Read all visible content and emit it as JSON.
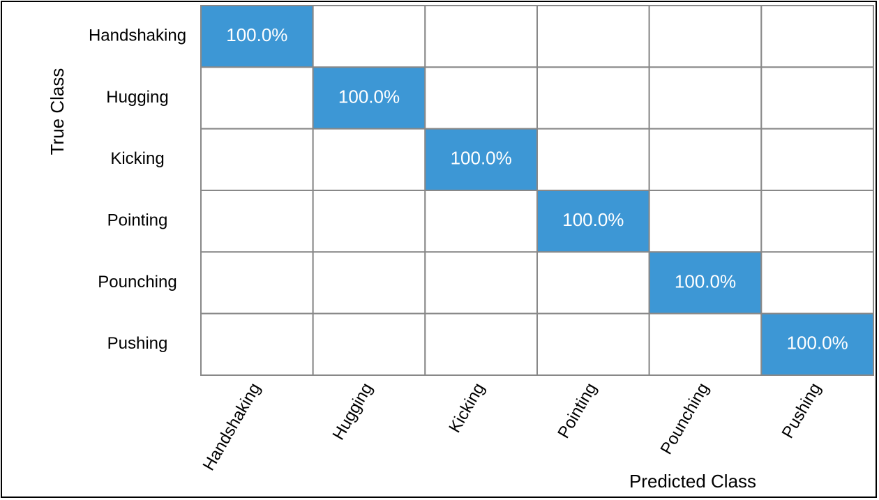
{
  "chart_data": {
    "type": "confusion_matrix",
    "ylabel": "True Class",
    "xlabel": "Predicted Class",
    "rows": [
      "Handshaking",
      "Hugging",
      "Kicking",
      "Pointing",
      "Pounching",
      "Pushing"
    ],
    "columns": [
      "Handshaking",
      "Hugging",
      "Kicking",
      "Pointing",
      "Pounching",
      "Pushing"
    ],
    "values": [
      [
        100.0,
        0,
        0,
        0,
        0,
        0
      ],
      [
        0,
        100.0,
        0,
        0,
        0,
        0
      ],
      [
        0,
        0,
        100.0,
        0,
        0,
        0
      ],
      [
        0,
        0,
        0,
        100.0,
        0,
        0
      ],
      [
        0,
        0,
        0,
        0,
        100.0,
        0
      ],
      [
        0,
        0,
        0,
        0,
        0,
        100.0
      ]
    ],
    "value_labels": [
      [
        "100.0%",
        null,
        null,
        null,
        null,
        null
      ],
      [
        null,
        "100.0%",
        null,
        null,
        null,
        null
      ],
      [
        null,
        null,
        "100.0%",
        null,
        null,
        null
      ],
      [
        null,
        null,
        null,
        "100.0%",
        null,
        null
      ],
      [
        null,
        null,
        null,
        null,
        "100.0%",
        null
      ],
      [
        null,
        null,
        null,
        null,
        null,
        "100.0%"
      ]
    ],
    "color": "#3d97d5"
  }
}
